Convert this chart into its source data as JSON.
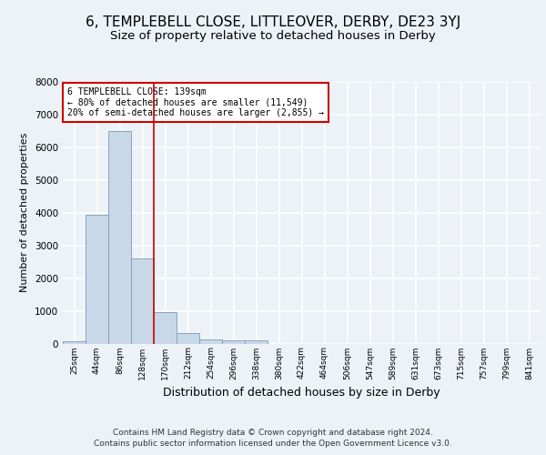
{
  "title_line1": "6, TEMPLEBELL CLOSE, LITTLEOVER, DERBY, DE23 3YJ",
  "title_line2": "Size of property relative to detached houses in Derby",
  "xlabel": "Distribution of detached houses by size in Derby",
  "ylabel": "Number of detached properties",
  "footer": "Contains HM Land Registry data © Crown copyright and database right 2024.\nContains public sector information licensed under the Open Government Licence v3.0.",
  "bin_labels": [
    "25sqm",
    "44sqm",
    "86sqm",
    "128sqm",
    "170sqm",
    "212sqm",
    "254sqm",
    "296sqm",
    "338sqm",
    "380sqm",
    "422sqm",
    "464sqm",
    "506sqm",
    "547sqm",
    "589sqm",
    "631sqm",
    "673sqm",
    "715sqm",
    "757sqm",
    "799sqm",
    "841sqm"
  ],
  "bar_values": [
    80,
    3950,
    6500,
    2600,
    950,
    310,
    130,
    100,
    85,
    0,
    0,
    0,
    0,
    0,
    0,
    0,
    0,
    0,
    0,
    0,
    0
  ],
  "bar_color": "#c8d8e8",
  "bar_edgecolor": "#7a9cb8",
  "vline_pos": 3.5,
  "vline_color": "#cc0000",
  "annotation_text": "6 TEMPLEBELL CLOSE: 139sqm\n← 80% of detached houses are smaller (11,549)\n20% of semi-detached houses are larger (2,855) →",
  "annotation_box_color": "#cc0000",
  "ylim": [
    0,
    8000
  ],
  "yticks": [
    0,
    1000,
    2000,
    3000,
    4000,
    5000,
    6000,
    7000,
    8000
  ],
  "background_color": "#edf2f7",
  "plot_background": "#edf2f7",
  "grid_color": "#ffffff",
  "title1_fontsize": 11,
  "title2_fontsize": 9.5,
  "xlabel_fontsize": 9,
  "ylabel_fontsize": 8,
  "footer_fontsize": 6.5
}
